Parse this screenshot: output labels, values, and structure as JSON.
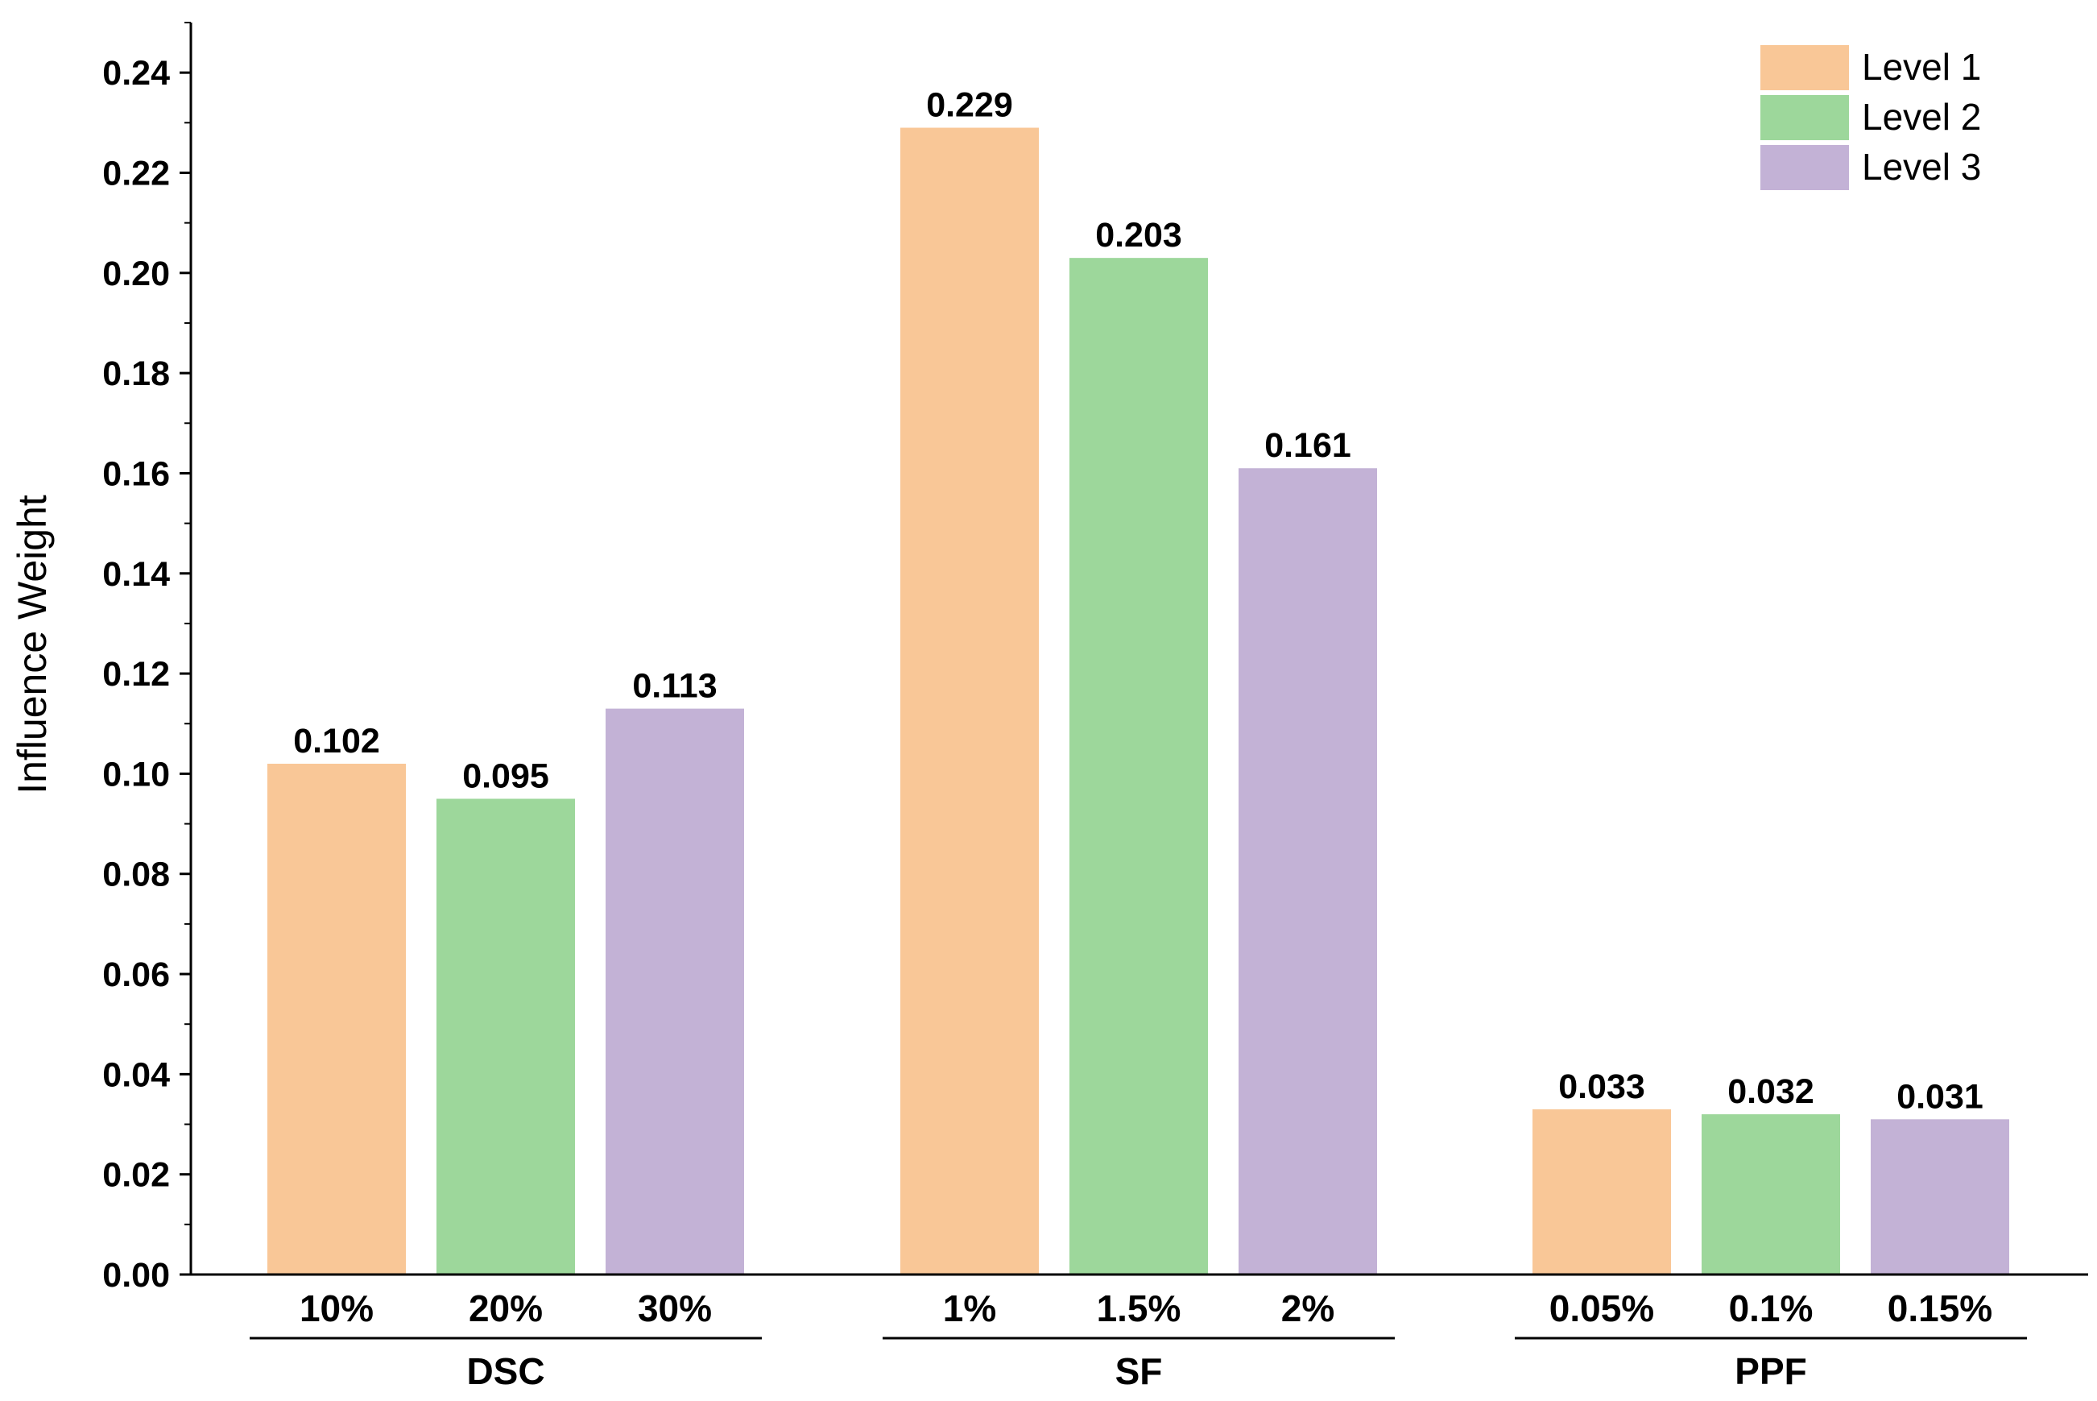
{
  "chart_data": {
    "type": "bar",
    "ylabel": "Influence Weight",
    "xlabel": "",
    "ylim": [
      0,
      0.25
    ],
    "y_ticks": [
      "0.00",
      "0.02",
      "0.04",
      "0.06",
      "0.08",
      "0.10",
      "0.12",
      "0.14",
      "0.16",
      "0.18",
      "0.20",
      "0.22",
      "0.24"
    ],
    "y_tick_values": [
      0,
      0.02,
      0.04,
      0.06,
      0.08,
      0.1,
      0.12,
      0.14,
      0.16,
      0.18,
      0.2,
      0.22,
      0.24
    ],
    "legend_position": "top-right",
    "grid": false,
    "series": [
      {
        "name": "Level 1",
        "color": "#F9C797"
      },
      {
        "name": "Level 2",
        "color": "#9DD79B"
      },
      {
        "name": "Level 3",
        "color": "#C3B2D6"
      }
    ],
    "groups": [
      {
        "name": "DSC",
        "categories": [
          "10%",
          "20%",
          "30%"
        ],
        "values": [
          0.102,
          0.095,
          0.113
        ],
        "labels": [
          "0.102",
          "0.095",
          "0.113"
        ]
      },
      {
        "name": "SF",
        "categories": [
          "1%",
          "1.5%",
          "2%"
        ],
        "values": [
          0.229,
          0.203,
          0.161
        ],
        "labels": [
          "0.229",
          "0.203",
          "0.161"
        ]
      },
      {
        "name": "PPF",
        "categories": [
          "0.05%",
          "0.1%",
          "0.15%"
        ],
        "values": [
          0.033,
          0.032,
          0.031
        ],
        "labels": [
          "0.033",
          "0.032",
          "0.031"
        ]
      }
    ]
  }
}
